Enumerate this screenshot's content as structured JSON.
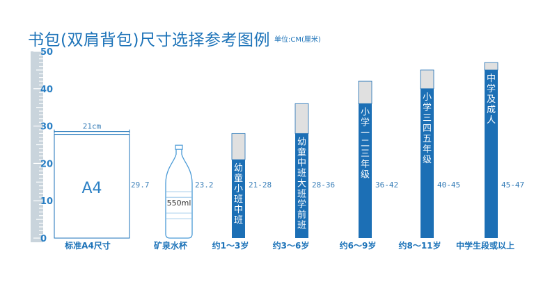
{
  "title": "书包(双肩背包)尺寸选择参考图例",
  "unit": "单位:CM(厘米)",
  "ruler": {
    "max": 50,
    "labels": [
      "50",
      "40",
      "30",
      "20",
      "10",
      "0"
    ]
  },
  "a4": {
    "label": "A4",
    "width_label": "21cm",
    "height_label": "29.7",
    "height": 29.7,
    "caption": "标准A4尺寸"
  },
  "bottle": {
    "label": "550ml",
    "height_label": "23.2",
    "height": 23.2,
    "caption": "矿泉水杯"
  },
  "bars": [
    {
      "caption": "约1～3岁",
      "vertical_text": "幼童小班中班",
      "range_label": "21-28",
      "min": 21,
      "max": 28
    },
    {
      "caption": "约3～6岁",
      "vertical_text": "幼童中班大班学前班",
      "range_label": "28-36",
      "min": 28,
      "max": 36
    },
    {
      "caption": "约6～9岁",
      "vertical_text": "小学一二三年级",
      "range_label": "36-42",
      "min": 36,
      "max": 42
    },
    {
      "caption": "约8～11岁",
      "vertical_text": "小学三四五年级",
      "range_label": "40-45",
      "min": 40,
      "max": 45
    },
    {
      "caption": "中学生段或以上",
      "vertical_text": "中学及成人",
      "range_label": "45-47",
      "min": 45,
      "max": 47
    }
  ],
  "colors": {
    "primary": "#1b72b8",
    "bar_fill": "#1c6fb5",
    "bar_top": "#e0e0e0",
    "ruler": "#c9d4dc"
  }
}
